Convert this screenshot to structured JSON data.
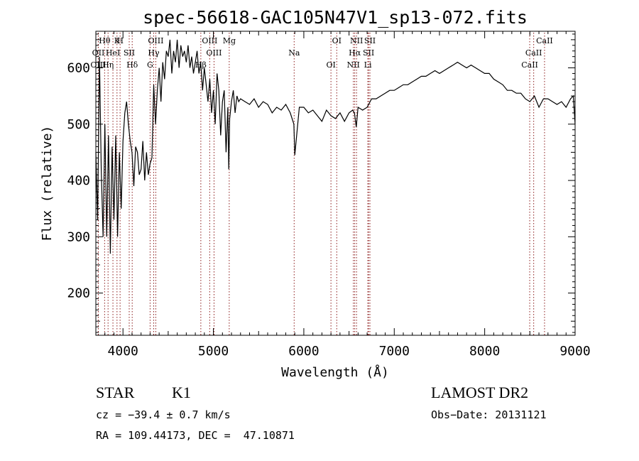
{
  "chart_data": {
    "type": "line",
    "title": "spec-56618-GAC105N47V1_sp13-072.fits",
    "xlabel": "Wavelength (Å)",
    "ylabel": "Flux (relative)",
    "xlim": [
      3700,
      9000
    ],
    "ylim": [
      125,
      665
    ],
    "xticks": [
      4000,
      5000,
      6000,
      7000,
      8000,
      9000
    ],
    "yticks": [
      200,
      300,
      400,
      500,
      600
    ],
    "grid": false,
    "series": [
      {
        "color": "#000000",
        "x": [
          3700,
          3720,
          3740,
          3760,
          3780,
          3800,
          3820,
          3840,
          3860,
          3880,
          3900,
          3920,
          3940,
          3960,
          3980,
          4000,
          4020,
          4040,
          4060,
          4080,
          4100,
          4120,
          4140,
          4160,
          4180,
          4200,
          4220,
          4240,
          4260,
          4280,
          4300,
          4320,
          4340,
          4360,
          4380,
          4400,
          4420,
          4440,
          4460,
          4480,
          4500,
          4520,
          4540,
          4560,
          4580,
          4600,
          4620,
          4640,
          4660,
          4680,
          4700,
          4720,
          4740,
          4760,
          4780,
          4800,
          4820,
          4840,
          4860,
          4880,
          4900,
          4920,
          4940,
          4960,
          4980,
          5000,
          5020,
          5040,
          5060,
          5080,
          5100,
          5120,
          5140,
          5160,
          5170,
          5180,
          5200,
          5220,
          5240,
          5260,
          5280,
          5300,
          5350,
          5400,
          5450,
          5500,
          5550,
          5600,
          5650,
          5700,
          5750,
          5800,
          5850,
          5890,
          5900,
          5950,
          6000,
          6050,
          6100,
          6150,
          6200,
          6250,
          6300,
          6350,
          6400,
          6450,
          6500,
          6540,
          6560,
          6580,
          6600,
          6650,
          6700,
          6750,
          6800,
          6850,
          6900,
          6950,
          7000,
          7050,
          7100,
          7150,
          7200,
          7250,
          7300,
          7350,
          7400,
          7450,
          7500,
          7550,
          7600,
          7650,
          7700,
          7750,
          7800,
          7850,
          7900,
          7950,
          8000,
          8050,
          8100,
          8150,
          8200,
          8250,
          8300,
          8350,
          8400,
          8450,
          8500,
          8550,
          8600,
          8650,
          8700,
          8750,
          8800,
          8850,
          8900,
          8950,
          8980,
          9000
        ],
        "y": [
          450,
          330,
          620,
          420,
          300,
          500,
          300,
          480,
          270,
          460,
          330,
          480,
          300,
          450,
          350,
          470,
          520,
          540,
          500,
          470,
          450,
          390,
          460,
          450,
          410,
          420,
          470,
          400,
          450,
          410,
          430,
          440,
          570,
          500,
          560,
          600,
          540,
          610,
          580,
          630,
          620,
          650,
          590,
          630,
          610,
          650,
          600,
          640,
          620,
          630,
          610,
          640,
          600,
          620,
          590,
          610,
          630,
          590,
          610,
          560,
          600,
          570,
          540,
          580,
          520,
          560,
          500,
          590,
          560,
          480,
          540,
          560,
          450,
          530,
          420,
          510,
          540,
          560,
          520,
          550,
          540,
          545,
          540,
          535,
          545,
          530,
          540,
          535,
          520,
          530,
          525,
          535,
          520,
          500,
          445,
          530,
          530,
          520,
          525,
          515,
          505,
          525,
          515,
          510,
          520,
          505,
          520,
          525,
          520,
          495,
          530,
          525,
          530,
          545,
          545,
          550,
          555,
          560,
          560,
          565,
          570,
          570,
          575,
          580,
          585,
          585,
          590,
          595,
          590,
          595,
          600,
          605,
          610,
          605,
          600,
          605,
          600,
          595,
          590,
          590,
          580,
          575,
          570,
          560,
          560,
          555,
          555,
          545,
          540,
          550,
          530,
          545,
          545,
          540,
          535,
          540,
          530,
          545,
          550,
          500
        ]
      }
    ],
    "lines": [
      {
        "label": "Hθ",
        "x": 3797
      },
      {
        "label": "OII",
        "x": 3727
      },
      {
        "label": "OIII",
        "x": 3727
      },
      {
        "label": "K",
        "x": 3934
      },
      {
        "label": "HeI",
        "x": 3889
      },
      {
        "label": "Hη",
        "x": 3835
      },
      {
        "label": "H",
        "x": 3968
      },
      {
        "label": "SII",
        "x": 4069
      },
      {
        "label": "Hδ",
        "x": 4102
      },
      {
        "label": "OIII",
        "x": 4363
      },
      {
        "label": "Hγ",
        "x": 4340
      },
      {
        "label": "G",
        "x": 4300
      },
      {
        "label": "OIII",
        "x": 4959
      },
      {
        "label": "OIII",
        "x": 5007
      },
      {
        "label": "Hβ",
        "x": 4861
      },
      {
        "label": "Mg",
        "x": 5175
      },
      {
        "label": "Na",
        "x": 5893
      },
      {
        "label": "OI",
        "x": 6300
      },
      {
        "label": "OI",
        "x": 6364
      },
      {
        "label": "Hα",
        "x": 6563
      },
      {
        "label": "NII",
        "x": 6548
      },
      {
        "label": "NII",
        "x": 6583
      },
      {
        "label": "SII",
        "x": 6716
      },
      {
        "label": "Li",
        "x": 6708
      },
      {
        "label": "SII",
        "x": 6731
      },
      {
        "label": "CaII",
        "x": 8542
      },
      {
        "label": "CaII",
        "x": 8498
      },
      {
        "label": "CaII",
        "x": 8662
      }
    ]
  },
  "info": {
    "class_label": "STAR",
    "subclass_label": "K1",
    "survey_label": "LAMOST DR2",
    "cz_text": "cz = −39.4 ± 0.7 km/s",
    "obsdate_text": "Obs−Date: 20131121",
    "radec_text": "RA = 109.44173, DEC =  47.10871"
  },
  "colors": {
    "spectrum": "#000000",
    "lines": "#8b1a1a"
  }
}
